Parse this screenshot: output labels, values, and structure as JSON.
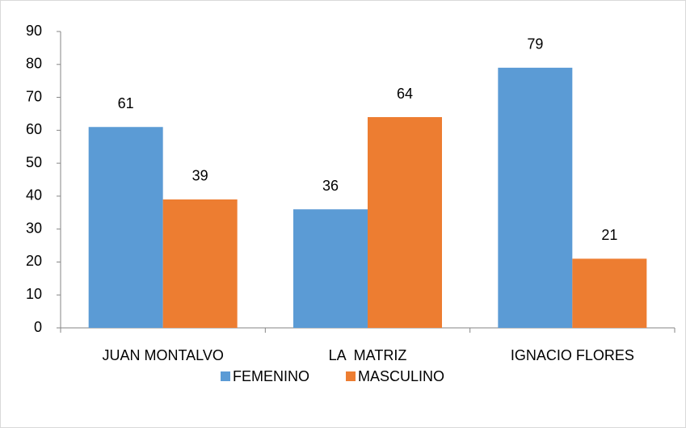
{
  "chart_data": {
    "type": "bar",
    "categories": [
      "JUAN MONTALVO",
      "LA  MATRIZ",
      "IGNACIO FLORES"
    ],
    "series": [
      {
        "name": "FEMENINO",
        "color": "#5b9bd5",
        "values": [
          61,
          36,
          79
        ]
      },
      {
        "name": "MASCULINO",
        "color": "#ed7d31",
        "values": [
          39,
          64,
          21
        ]
      }
    ],
    "ylim": [
      0,
      90
    ],
    "yticks": [
      0,
      10,
      20,
      30,
      40,
      50,
      60,
      70,
      80,
      90
    ],
    "grid": false,
    "legend": "bottom"
  }
}
